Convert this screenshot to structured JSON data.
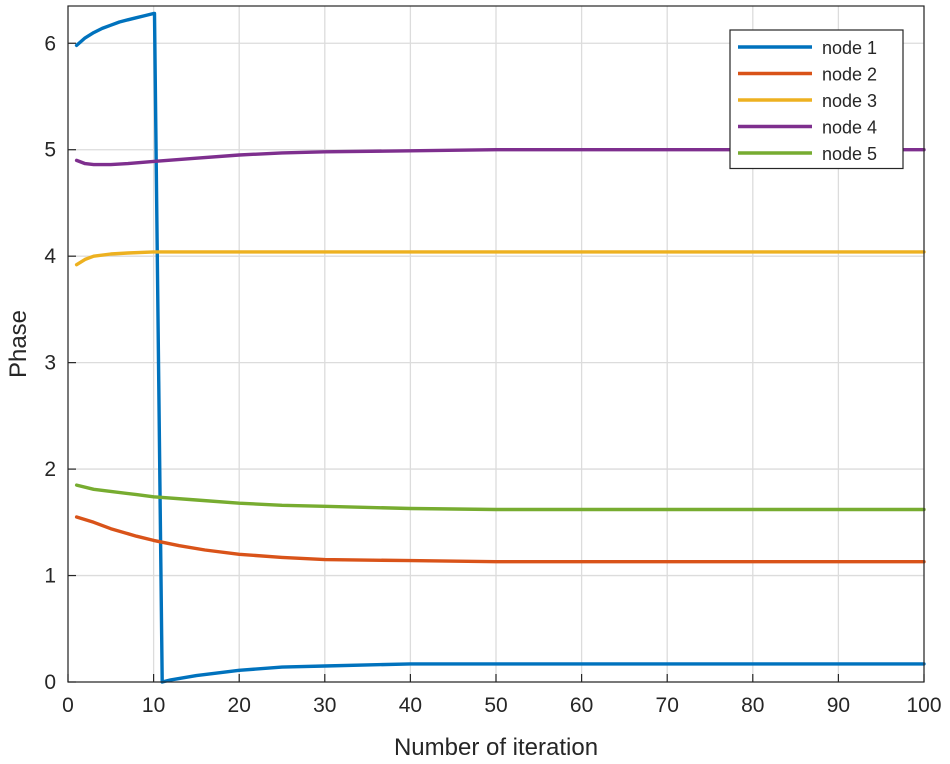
{
  "chart_data": {
    "type": "line",
    "title": "",
    "xlabel": "Number of iteration",
    "ylabel": "Phase",
    "xlim": [
      0,
      100
    ],
    "ylim": [
      0,
      6.35
    ],
    "xticks": [
      0,
      10,
      20,
      30,
      40,
      50,
      60,
      70,
      80,
      90,
      100
    ],
    "yticks": [
      0,
      1,
      2,
      3,
      4,
      5,
      6
    ],
    "grid": true,
    "legend_position": "top-right",
    "series": [
      {
        "name": "node 1",
        "color": "#0072BD",
        "x": [
          1,
          2,
          3,
          4,
          5,
          6,
          7,
          8,
          9,
          10,
          10.1,
          11,
          12,
          15,
          20,
          25,
          30,
          40,
          50,
          60,
          70,
          80,
          90,
          100
        ],
        "y": [
          5.98,
          6.05,
          6.1,
          6.14,
          6.17,
          6.2,
          6.22,
          6.24,
          6.26,
          6.28,
          6.28,
          0.0,
          0.02,
          0.06,
          0.11,
          0.14,
          0.15,
          0.17,
          0.17,
          0.17,
          0.17,
          0.17,
          0.17,
          0.17
        ]
      },
      {
        "name": "node 2",
        "color": "#D95319",
        "x": [
          1,
          3,
          5,
          8,
          10,
          13,
          16,
          20,
          25,
          30,
          40,
          50,
          60,
          70,
          80,
          90,
          100
        ],
        "y": [
          1.55,
          1.5,
          1.44,
          1.37,
          1.33,
          1.28,
          1.24,
          1.2,
          1.17,
          1.15,
          1.14,
          1.13,
          1.13,
          1.13,
          1.13,
          1.13,
          1.13
        ]
      },
      {
        "name": "node 3",
        "color": "#EDB120",
        "x": [
          1,
          2,
          3,
          5,
          7,
          10,
          15,
          20,
          30,
          40,
          50,
          60,
          70,
          80,
          90,
          100
        ],
        "y": [
          3.92,
          3.97,
          4.0,
          4.02,
          4.03,
          4.04,
          4.04,
          4.04,
          4.04,
          4.04,
          4.04,
          4.04,
          4.04,
          4.04,
          4.04,
          4.04
        ]
      },
      {
        "name": "node 4",
        "color": "#7E2F8E",
        "x": [
          1,
          2,
          3,
          5,
          7,
          10,
          15,
          20,
          25,
          30,
          40,
          50,
          60,
          70,
          80,
          90,
          100
        ],
        "y": [
          4.9,
          4.87,
          4.86,
          4.86,
          4.87,
          4.89,
          4.92,
          4.95,
          4.97,
          4.98,
          4.99,
          5.0,
          5.0,
          5.0,
          5.0,
          5.0,
          5.0
        ]
      },
      {
        "name": "node 5",
        "color": "#77AC30",
        "x": [
          1,
          3,
          5,
          8,
          10,
          15,
          20,
          25,
          30,
          40,
          50,
          60,
          70,
          80,
          90,
          100
        ],
        "y": [
          1.85,
          1.81,
          1.79,
          1.76,
          1.74,
          1.71,
          1.68,
          1.66,
          1.65,
          1.63,
          1.62,
          1.62,
          1.62,
          1.62,
          1.62,
          1.62
        ]
      }
    ]
  }
}
